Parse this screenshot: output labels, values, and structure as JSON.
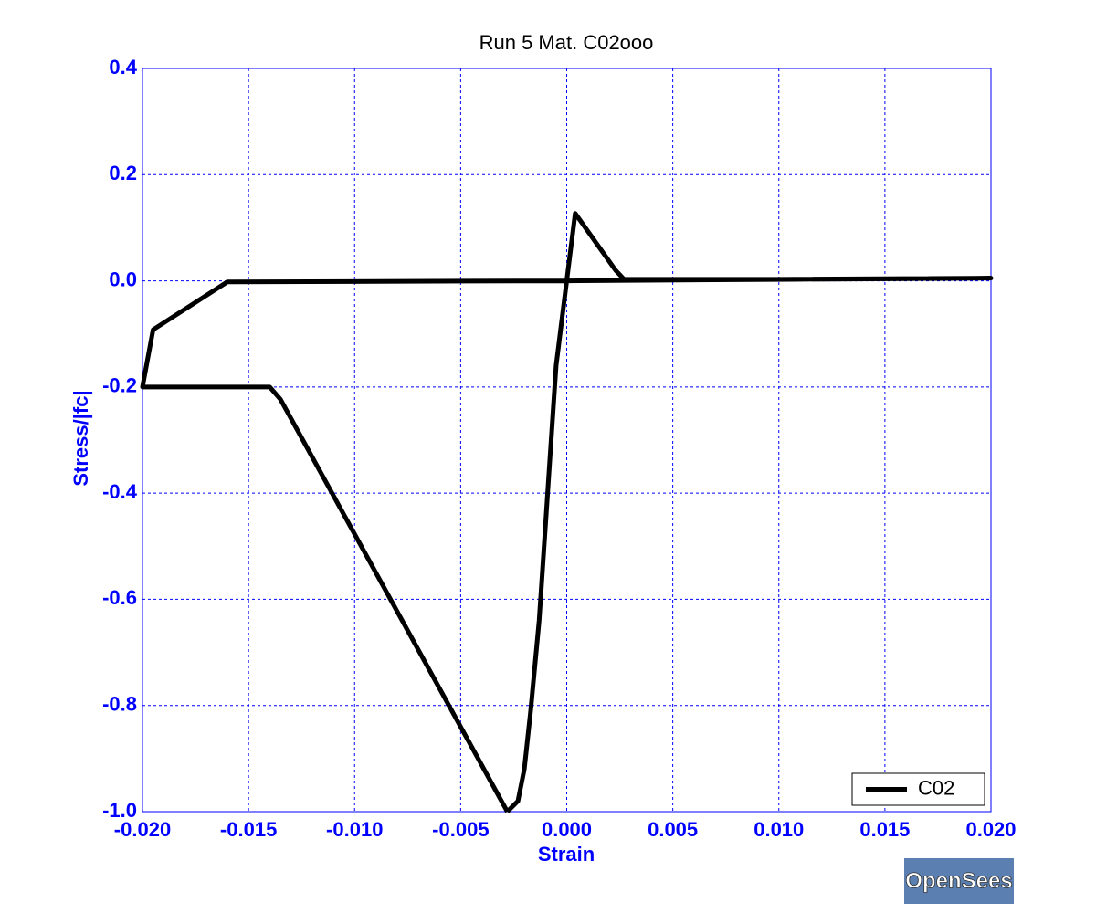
{
  "chart_data": {
    "type": "line",
    "title": "Run 5   Mat. C02ooo",
    "x_label": "Strain",
    "y_label": "Stress/|fc|",
    "x": [
      -0.0028,
      -0.0023,
      -0.002,
      -0.0017,
      -0.0013,
      -0.0009,
      -0.0005,
      0.0,
      0.0004,
      0.0023,
      0.0027,
      0.01,
      0.02,
      0.0,
      -0.016,
      -0.0195,
      -0.02,
      -0.014,
      -0.0135,
      -0.0028
    ],
    "series": [
      {
        "name": "C02",
        "color": "#000000",
        "values": [
          -1.0,
          -0.98,
          -0.92,
          -0.81,
          -0.64,
          -0.4,
          -0.16,
          0.0,
          0.127,
          0.02,
          0.003,
          0.003,
          0.005,
          0.0,
          -0.002,
          -0.092,
          -0.2,
          -0.2,
          -0.223,
          -1.0
        ]
      }
    ],
    "xlim": [
      -0.02,
      0.02
    ],
    "ylim": [
      -1.0,
      0.4
    ],
    "xticks": [
      {
        "value": -0.02,
        "label": "-0.020"
      },
      {
        "value": -0.015,
        "label": "-0.015"
      },
      {
        "value": -0.01,
        "label": "-0.010"
      },
      {
        "value": -0.005,
        "label": "-0.005"
      },
      {
        "value": 0.0,
        "label": "0.000"
      },
      {
        "value": 0.005,
        "label": "0.005"
      },
      {
        "value": 0.01,
        "label": "0.010"
      },
      {
        "value": 0.015,
        "label": "0.015"
      },
      {
        "value": 0.02,
        "label": "0.020"
      }
    ],
    "yticks": [
      {
        "value": -1.0,
        "label": "-1.0"
      },
      -0.8,
      -0.6,
      -0.4,
      -0.2,
      {
        "value": 0.0,
        "label": "0.0"
      },
      0.2,
      0.4
    ],
    "grid": true,
    "legend": "lower right",
    "logo": "OpenSees"
  }
}
